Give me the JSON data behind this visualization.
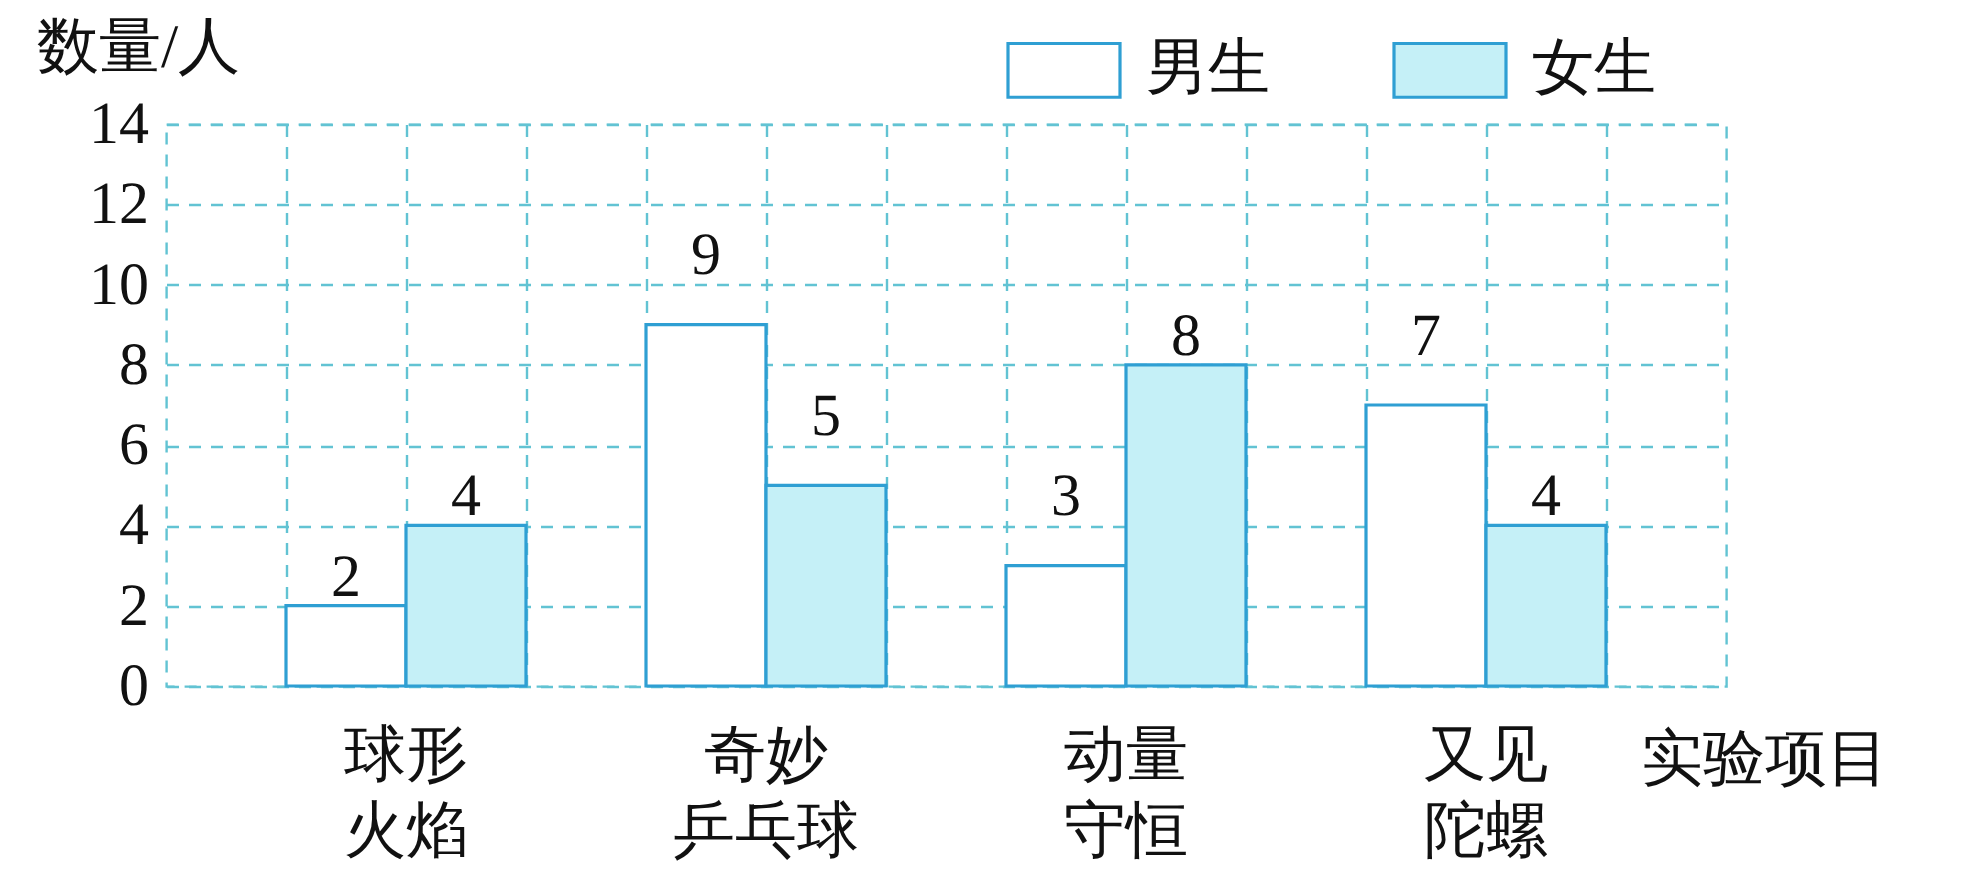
{
  "chart_data": {
    "type": "bar",
    "categories": [
      "球形火焰",
      "奇妙乒乓球",
      "动量守恒",
      "又见陀螺"
    ],
    "series": [
      {
        "name": "男生",
        "color": "#ffffff",
        "values": [
          2,
          9,
          3,
          7
        ]
      },
      {
        "name": "女生",
        "color": "#c5f0f7",
        "values": [
          4,
          5,
          8,
          4
        ]
      }
    ],
    "xlabel": "实验项目",
    "ylabel": "数量/人",
    "ylim": [
      0,
      14
    ],
    "yticks": [
      0,
      2,
      4,
      6,
      8,
      10,
      12,
      14
    ],
    "grid": true,
    "legend": "top right",
    "data_labels": true
  }
}
